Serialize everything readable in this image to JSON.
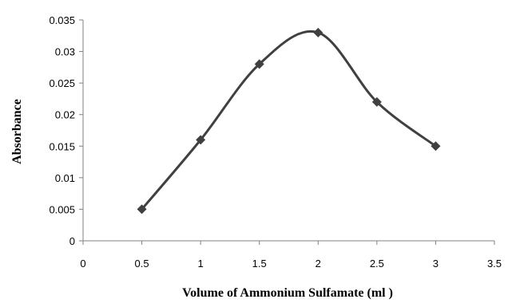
{
  "chart_data": {
    "type": "line",
    "title": "",
    "xlabel": "Volume of Ammonium Sulfamate (ml )",
    "ylabel": "Absorbance",
    "xlim": [
      0,
      3.5
    ],
    "ylim": [
      0,
      0.035
    ],
    "x_ticks": [
      "0",
      "0.5",
      "1",
      "1.5",
      "2",
      "2.5",
      "3",
      "3.5"
    ],
    "y_ticks": [
      "0",
      "0.005",
      "0.01",
      "0.015",
      "0.02",
      "0.025",
      "0.03",
      "0.035"
    ],
    "grid": false,
    "smooth": true,
    "marker": "diamond",
    "line_color": "#404040",
    "x": [
      0.5,
      1,
      1.5,
      2,
      2.5,
      3
    ],
    "y": [
      0.005,
      0.016,
      0.028,
      0.033,
      0.022,
      0.015
    ]
  }
}
